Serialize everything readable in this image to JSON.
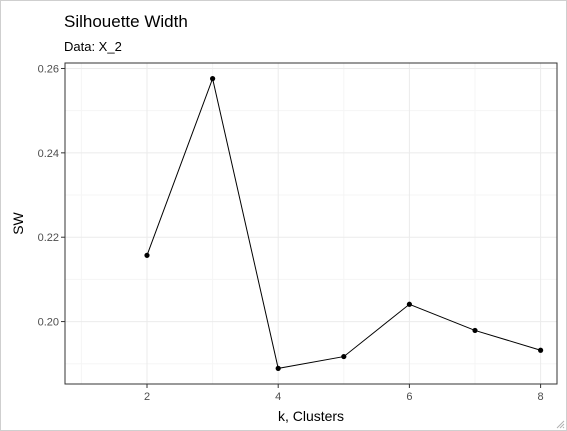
{
  "chart_data": {
    "type": "line",
    "title": "Silhouette Width",
    "subtitle": "Data: X_2",
    "xlabel": "k, Clusters",
    "ylabel": "SW",
    "x": [
      2,
      3,
      4,
      5,
      6,
      7,
      8
    ],
    "series": [
      {
        "values": [
          0.2157,
          0.2576,
          0.1889,
          0.1917,
          0.2041,
          0.1979,
          0.1932
        ]
      }
    ],
    "xlim": [
      0.75,
      8.25
    ],
    "ylim": [
      0.1852,
      0.2613
    ],
    "x_ticks": [
      2,
      4,
      6,
      8
    ],
    "x_tick_labels": [
      "2",
      "4",
      "6",
      "8"
    ],
    "y_ticks": [
      0.2,
      0.22,
      0.24,
      0.26
    ],
    "y_tick_labels": [
      "0.20",
      "0.22",
      "0.24",
      "0.26"
    ],
    "grid": true,
    "legend": "none",
    "colors": {
      "line": "#000000",
      "point": "#000000",
      "grid_major": "#ebebeb",
      "grid_minor": "#f5f5f5",
      "panel_border": "#333333"
    }
  }
}
